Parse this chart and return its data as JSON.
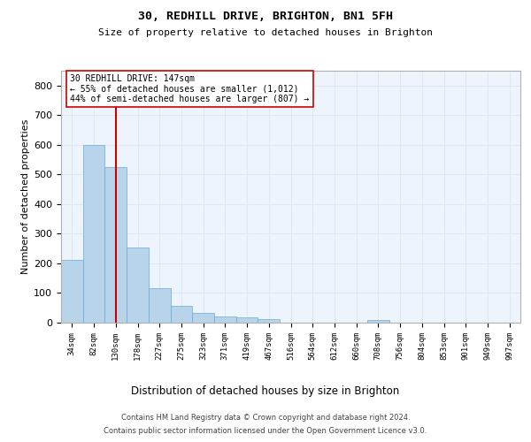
{
  "title1": "30, REDHILL DRIVE, BRIGHTON, BN1 5FH",
  "title2": "Size of property relative to detached houses in Brighton",
  "xlabel": "Distribution of detached houses by size in Brighton",
  "ylabel": "Number of detached properties",
  "categories": [
    "34sqm",
    "82sqm",
    "130sqm",
    "178sqm",
    "227sqm",
    "275sqm",
    "323sqm",
    "371sqm",
    "419sqm",
    "467sqm",
    "516sqm",
    "564sqm",
    "612sqm",
    "660sqm",
    "708sqm",
    "756sqm",
    "804sqm",
    "853sqm",
    "901sqm",
    "949sqm",
    "997sqm"
  ],
  "values": [
    213,
    600,
    525,
    255,
    115,
    57,
    33,
    20,
    18,
    13,
    0,
    0,
    0,
    0,
    8,
    0,
    0,
    0,
    0,
    0,
    0
  ],
  "bar_color": "#b8d4ea",
  "bar_edge_color": "#6aaad4",
  "grid_color": "#dce8f5",
  "bg_color": "#eef4fb",
  "vline_color": "#cc0000",
  "vline_x": 2.0,
  "annotation_line1": "30 REDHILL DRIVE: 147sqm",
  "annotation_line2": "← 55% of detached houses are smaller (1,012)",
  "annotation_line3": "44% of semi-detached houses are larger (807) →",
  "ylim_max": 850,
  "yticks": [
    0,
    100,
    200,
    300,
    400,
    500,
    600,
    700,
    800
  ],
  "footer1": "Contains HM Land Registry data © Crown copyright and database right 2024.",
  "footer2": "Contains public sector information licensed under the Open Government Licence v3.0."
}
